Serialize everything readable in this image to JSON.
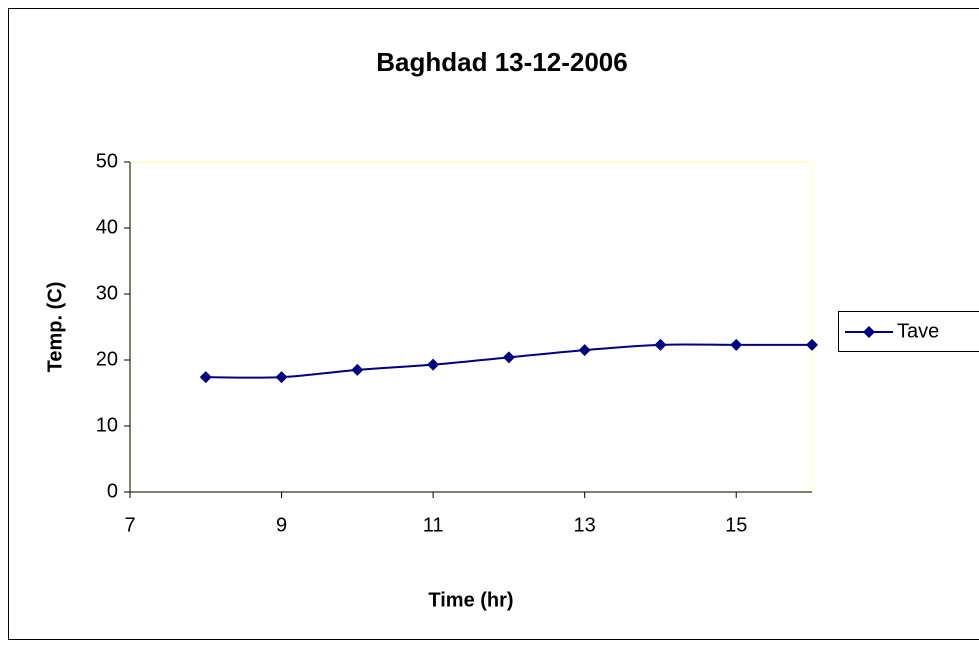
{
  "chart_data": {
    "type": "line",
    "title": "Baghdad 13-12-2006",
    "x_label": "Time (hr)",
    "y_label": "Temp. (C)",
    "x": [
      8,
      9,
      10,
      11,
      12,
      13,
      14,
      15,
      16
    ],
    "series": [
      {
        "name": "Tave",
        "color": "#000080",
        "values": [
          17.4,
          17.4,
          18.5,
          19.3,
          20.4,
          21.5,
          22.3,
          22.3,
          22.3
        ]
      }
    ],
    "xlim": [
      7,
      16
    ],
    "xticks": [
      7,
      9,
      11,
      13,
      15
    ],
    "ylim": [
      0,
      50
    ],
    "yticks": [
      0,
      10,
      20,
      30,
      40,
      50
    ],
    "smooth": true,
    "legend": "right"
  }
}
